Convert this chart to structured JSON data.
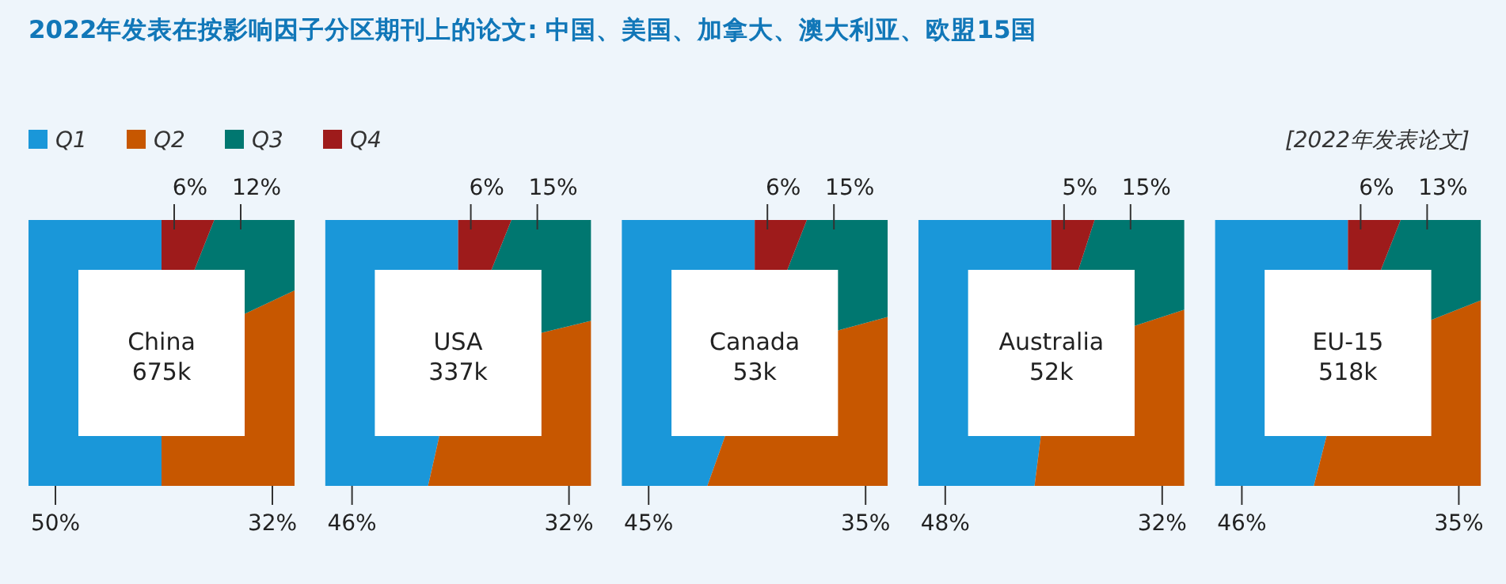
{
  "chart_data": {
    "type": "donut",
    "title": "2022年发表在按影响因子分区期刊上的论文: 中国、美国、加拿大、澳大利亚、欧盟15国",
    "subtitle": "[2022年发表论文]",
    "categories": [
      "Q1",
      "Q2",
      "Q3",
      "Q4"
    ],
    "colors": [
      "#1a97d9",
      "#c75700",
      "#007770",
      "#9e1b1b"
    ],
    "legend": "top left",
    "series": [
      {
        "name": "China",
        "values": [
          50,
          32,
          12,
          6
        ],
        "value_labels": [
          "50%",
          "32%",
          "12%",
          "6%"
        ]
      },
      {
        "name": "USA",
        "values": [
          46,
          32,
          15,
          6
        ],
        "value_labels": [
          "46%",
          "32%",
          "15%",
          "6%"
        ]
      },
      {
        "name": "Canada",
        "values": [
          45,
          35,
          15,
          6
        ],
        "value_labels": [
          "45%",
          "35%",
          "15%",
          "6%"
        ]
      },
      {
        "name": "Australia",
        "values": [
          48,
          32,
          15,
          5
        ],
        "value_labels": [
          "48%",
          "32%",
          "15%",
          "5%"
        ]
      },
      {
        "name": "EU-15",
        "values": [
          46,
          35,
          13,
          6
        ],
        "value_labels": [
          "46%",
          "35%",
          "13%",
          "6%"
        ]
      }
    ],
    "totals": [
      "675k",
      "337k",
      "53k",
      "52k",
      "518k"
    ]
  }
}
